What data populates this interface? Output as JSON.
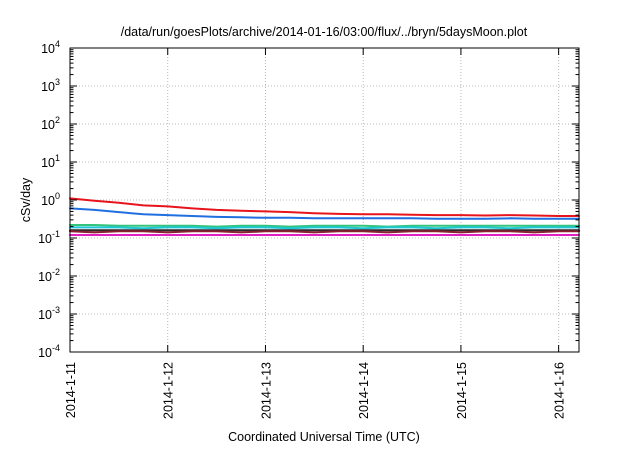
{
  "chart_data": {
    "type": "line",
    "title": "/data/run/goesPlots/archive/2014-01-16/03:00/flux/../bryn/5daysMoon.plot",
    "xlabel": "Coordinated Universal Time (UTC)",
    "ylabel": "cSv/day",
    "yscale": "log",
    "ylim": [
      0.0001,
      10000
    ],
    "xlim": [
      "2014-01-11",
      "2014-01-16 05:00"
    ],
    "grid": true,
    "legend": "none",
    "x_tick_labels": [
      "2014-1-11",
      "2014-1-12",
      "2014-1-13",
      "2014-1-14",
      "2014-1-15",
      "2014-1-16"
    ],
    "y_ticks": [
      {
        "base": "10",
        "exp": "-4"
      },
      {
        "base": "10",
        "exp": "-3"
      },
      {
        "base": "10",
        "exp": "-2"
      },
      {
        "base": "10",
        "exp": "-1"
      },
      {
        "base": "10",
        "exp": "0"
      },
      {
        "base": "10",
        "exp": "1"
      },
      {
        "base": "10",
        "exp": "2"
      },
      {
        "base": "10",
        "exp": "3"
      },
      {
        "base": "10",
        "exp": "4"
      }
    ],
    "x": [
      "2014-01-11 00:00",
      "2014-01-11 06:00",
      "2014-01-11 12:00",
      "2014-01-11 18:00",
      "2014-01-12 00:00",
      "2014-01-12 06:00",
      "2014-01-12 12:00",
      "2014-01-12 18:00",
      "2014-01-13 00:00",
      "2014-01-13 06:00",
      "2014-01-13 12:00",
      "2014-01-13 18:00",
      "2014-01-14 00:00",
      "2014-01-14 06:00",
      "2014-01-14 12:00",
      "2014-01-14 18:00",
      "2014-01-15 00:00",
      "2014-01-15 06:00",
      "2014-01-15 12:00",
      "2014-01-15 18:00",
      "2014-01-16 00:00",
      "2014-01-16 05:00"
    ],
    "series": [
      {
        "color": "#e8141c",
        "values": [
          1.1,
          0.95,
          0.85,
          0.72,
          0.68,
          0.6,
          0.55,
          0.52,
          0.5,
          0.48,
          0.45,
          0.43,
          0.42,
          0.42,
          0.41,
          0.4,
          0.4,
          0.39,
          0.4,
          0.39,
          0.38,
          0.38
        ]
      },
      {
        "color": "#1f6fe0",
        "values": [
          0.6,
          0.55,
          0.48,
          0.42,
          0.4,
          0.38,
          0.36,
          0.35,
          0.34,
          0.34,
          0.33,
          0.33,
          0.33,
          0.33,
          0.33,
          0.32,
          0.32,
          0.32,
          0.33,
          0.32,
          0.32,
          0.32
        ]
      },
      {
        "color": "#33c47a",
        "values": [
          0.22,
          0.22,
          0.21,
          0.21,
          0.21,
          0.21,
          0.2,
          0.21,
          0.21,
          0.2,
          0.21,
          0.21,
          0.21,
          0.2,
          0.21,
          0.21,
          0.21,
          0.21,
          0.21,
          0.21,
          0.21,
          0.21
        ]
      },
      {
        "color": "#1ec7d8",
        "values": [
          0.19,
          0.19,
          0.19,
          0.18,
          0.19,
          0.19,
          0.18,
          0.19,
          0.19,
          0.18,
          0.19,
          0.19,
          0.18,
          0.19,
          0.19,
          0.18,
          0.19,
          0.19,
          0.18,
          0.19,
          0.19,
          0.19
        ]
      },
      {
        "color": "#2a2a2a",
        "values": [
          0.16,
          0.16,
          0.16,
          0.16,
          0.16,
          0.16,
          0.16,
          0.16,
          0.16,
          0.16,
          0.16,
          0.16,
          0.16,
          0.16,
          0.16,
          0.16,
          0.16,
          0.16,
          0.16,
          0.16,
          0.16,
          0.16
        ]
      },
      {
        "color": "#8a2030",
        "values": [
          0.15,
          0.14,
          0.15,
          0.15,
          0.14,
          0.15,
          0.15,
          0.14,
          0.15,
          0.15,
          0.14,
          0.15,
          0.15,
          0.14,
          0.15,
          0.15,
          0.14,
          0.15,
          0.15,
          0.14,
          0.15,
          0.15
        ]
      },
      {
        "color": "#e020c0",
        "values": [
          0.12,
          0.12,
          0.12,
          0.12,
          0.12,
          0.12,
          0.12,
          0.12,
          0.12,
          0.12,
          0.12,
          0.12,
          0.12,
          0.12,
          0.12,
          0.12,
          0.12,
          0.12,
          0.12,
          0.12,
          0.12,
          0.12
        ]
      }
    ]
  }
}
